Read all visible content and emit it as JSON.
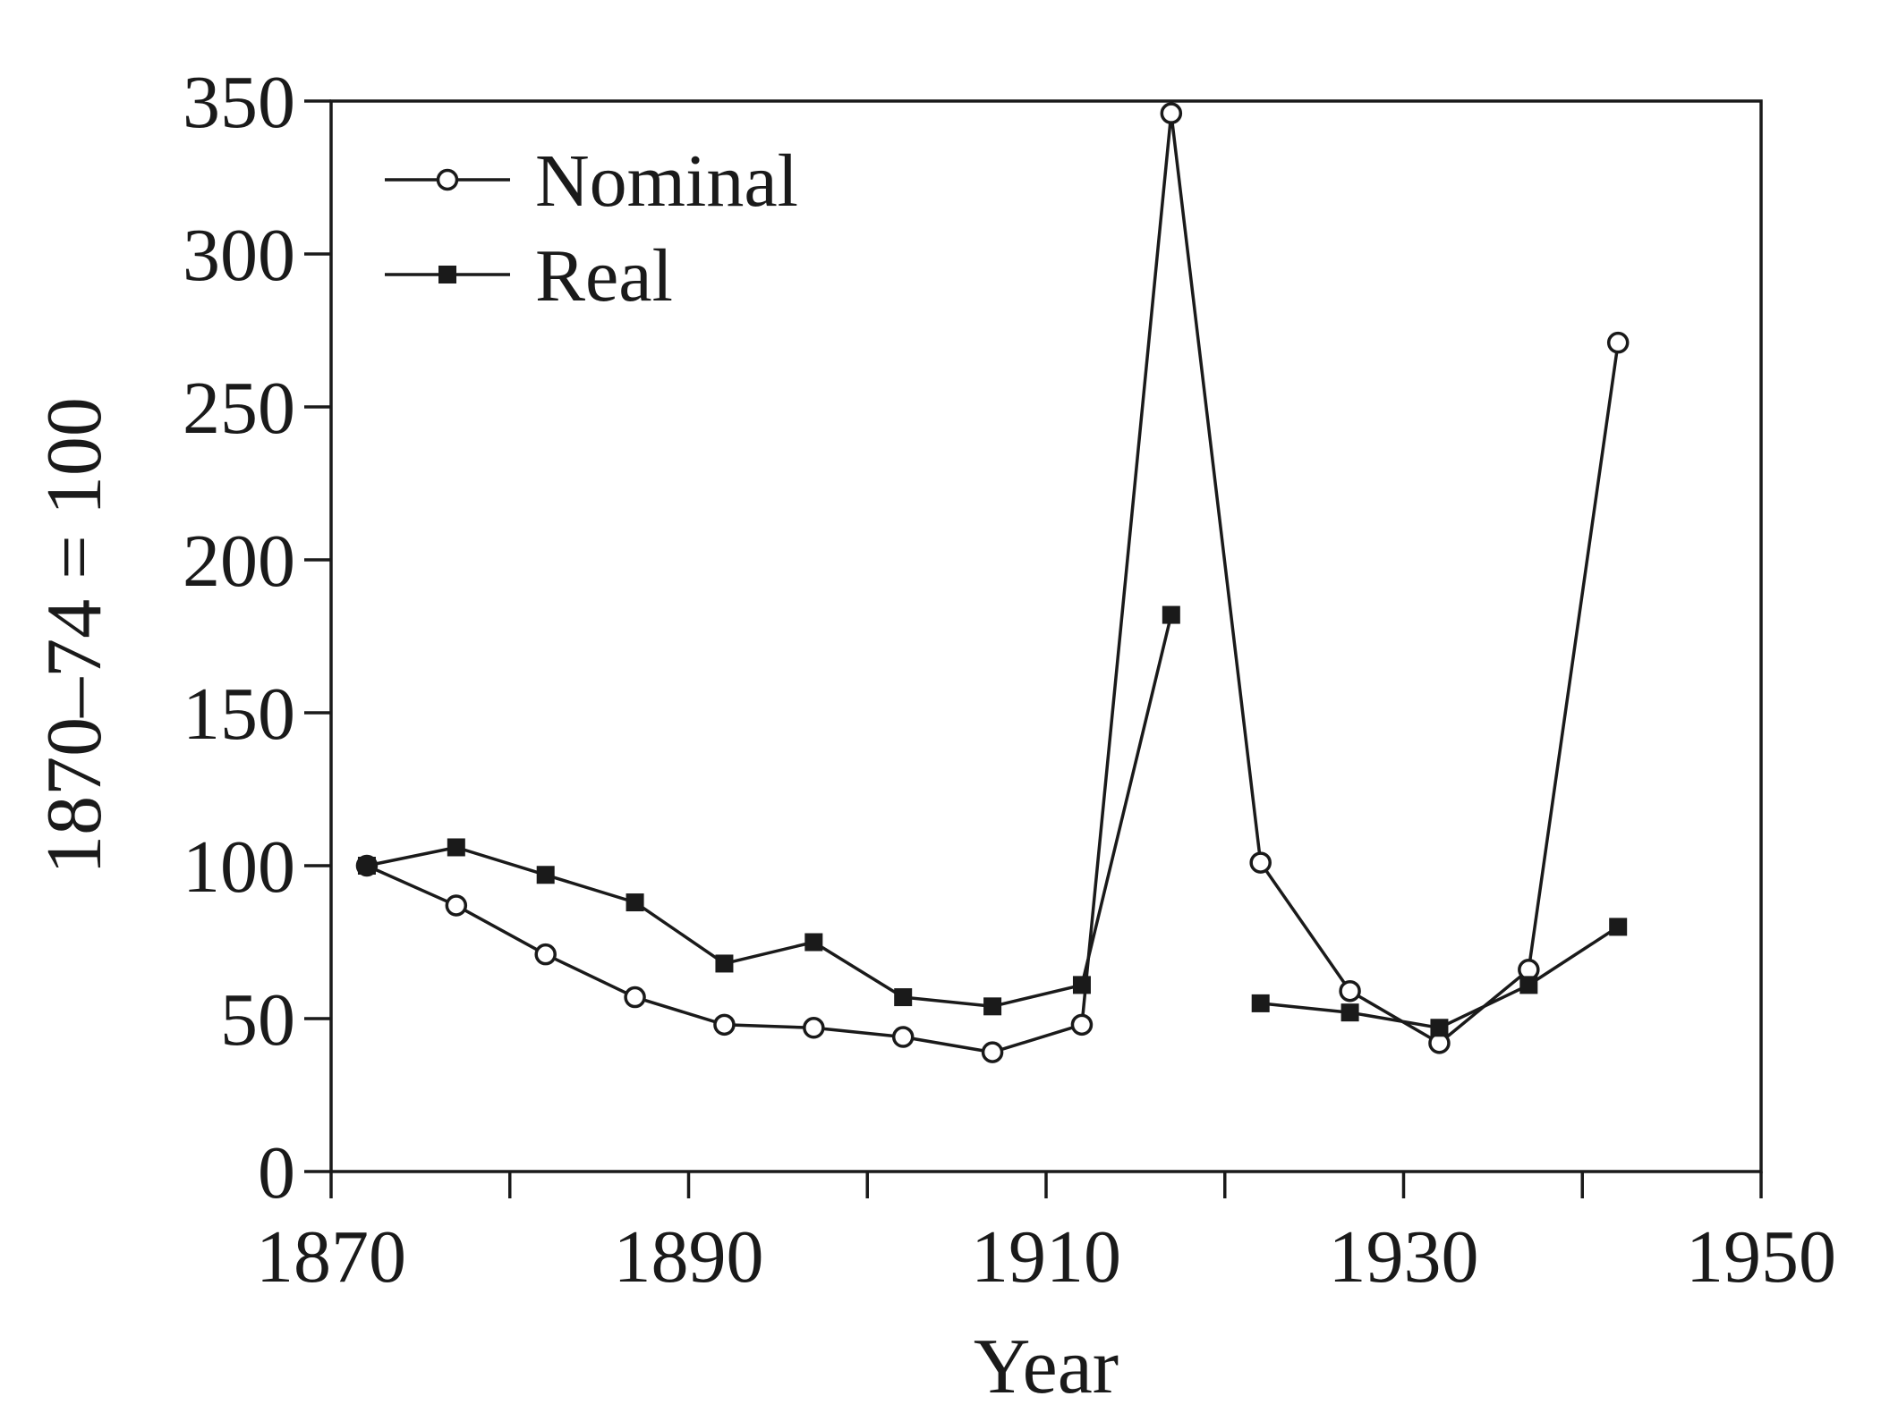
{
  "chart_data": {
    "type": "line",
    "xlabel": "Year",
    "ylabel": "1870–74 = 100",
    "xlim": [
      1870,
      1950
    ],
    "ylim": [
      0,
      350
    ],
    "x_major_ticks": [
      1870,
      1890,
      1910,
      1930,
      1950
    ],
    "x_minor_ticks": [
      1880,
      1900,
      1920,
      1940
    ],
    "y_ticks": [
      0,
      50,
      100,
      150,
      200,
      250,
      300,
      350
    ],
    "legend_position": "top-left",
    "grid": false,
    "series": [
      {
        "name": "Nominal",
        "marker": "open-circle",
        "segments": [
          {
            "x": [
              1872,
              1877,
              1882,
              1887,
              1892,
              1897,
              1902,
              1907,
              1912,
              1917,
              1922,
              1927,
              1932,
              1937,
              1942
            ],
            "y": [
              100,
              87,
              71,
              57,
              48,
              47,
              44,
              39,
              48,
              346,
              101,
              59,
              42,
              66,
              271
            ]
          }
        ]
      },
      {
        "name": "Real",
        "marker": "filled-square",
        "segments": [
          {
            "x": [
              1872,
              1877,
              1882,
              1887,
              1892,
              1897,
              1902,
              1907,
              1912,
              1917
            ],
            "y": [
              100,
              106,
              97,
              88,
              68,
              75,
              57,
              54,
              61,
              182
            ]
          },
          {
            "x": [
              1922,
              1927,
              1932,
              1937,
              1942
            ],
            "y": [
              55,
              52,
              47,
              61,
              80
            ]
          }
        ]
      }
    ]
  }
}
